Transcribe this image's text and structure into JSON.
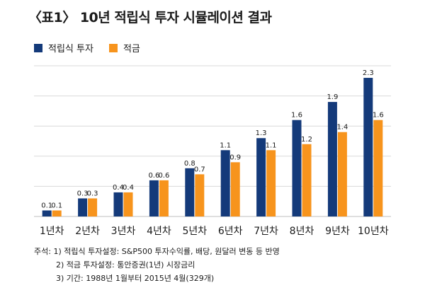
{
  "title": "〈표1〉 10년 적립식 투자 시뮬레이션 결과",
  "colors": {
    "series1": "#143a7a",
    "series2": "#f7941d",
    "grid": "#d9d9d9"
  },
  "chart_data": {
    "type": "bar",
    "categories": [
      "1년차",
      "2년차",
      "3년차",
      "4년차",
      "5년차",
      "6년차",
      "7년차",
      "8년차",
      "9년차",
      "10년차"
    ],
    "series": [
      {
        "name": "적립식 투자",
        "values": [
          0.1,
          0.3,
          0.4,
          0.6,
          0.8,
          1.1,
          1.3,
          1.6,
          1.9,
          2.3
        ]
      },
      {
        "name": "적금",
        "values": [
          0.1,
          0.3,
          0.4,
          0.6,
          0.7,
          0.9,
          1.1,
          1.2,
          1.4,
          1.6
        ]
      }
    ],
    "value_labels": [
      [
        "0.1",
        "0.3",
        "0.4",
        "0.6",
        "0.8",
        "1.1",
        "1.3",
        "1.6",
        "1.9",
        "2.3"
      ],
      [
        "0.1",
        "0.3",
        "0.4",
        "0.6",
        "0.7",
        "0.9",
        "1.1",
        "1.2",
        "1.4",
        "1.6"
      ]
    ],
    "title": "〈표1〉 10년 적립식 투자 시뮬레이션 결과",
    "xlabel": "",
    "ylabel": "",
    "ylim": [
      0,
      2.5
    ],
    "grid": true,
    "legend_position": "top-left"
  },
  "notes": {
    "line1": "주석: 1) 적립식 투자설정: S&P500 투자수익률, 배당, 원달러 변동 등 반영",
    "line2": "2) 적금 투자설정: 통안증권(1년) 시장금리",
    "line3": "3) 기간: 1988년 1월부터 2015년 4월(329개)"
  }
}
